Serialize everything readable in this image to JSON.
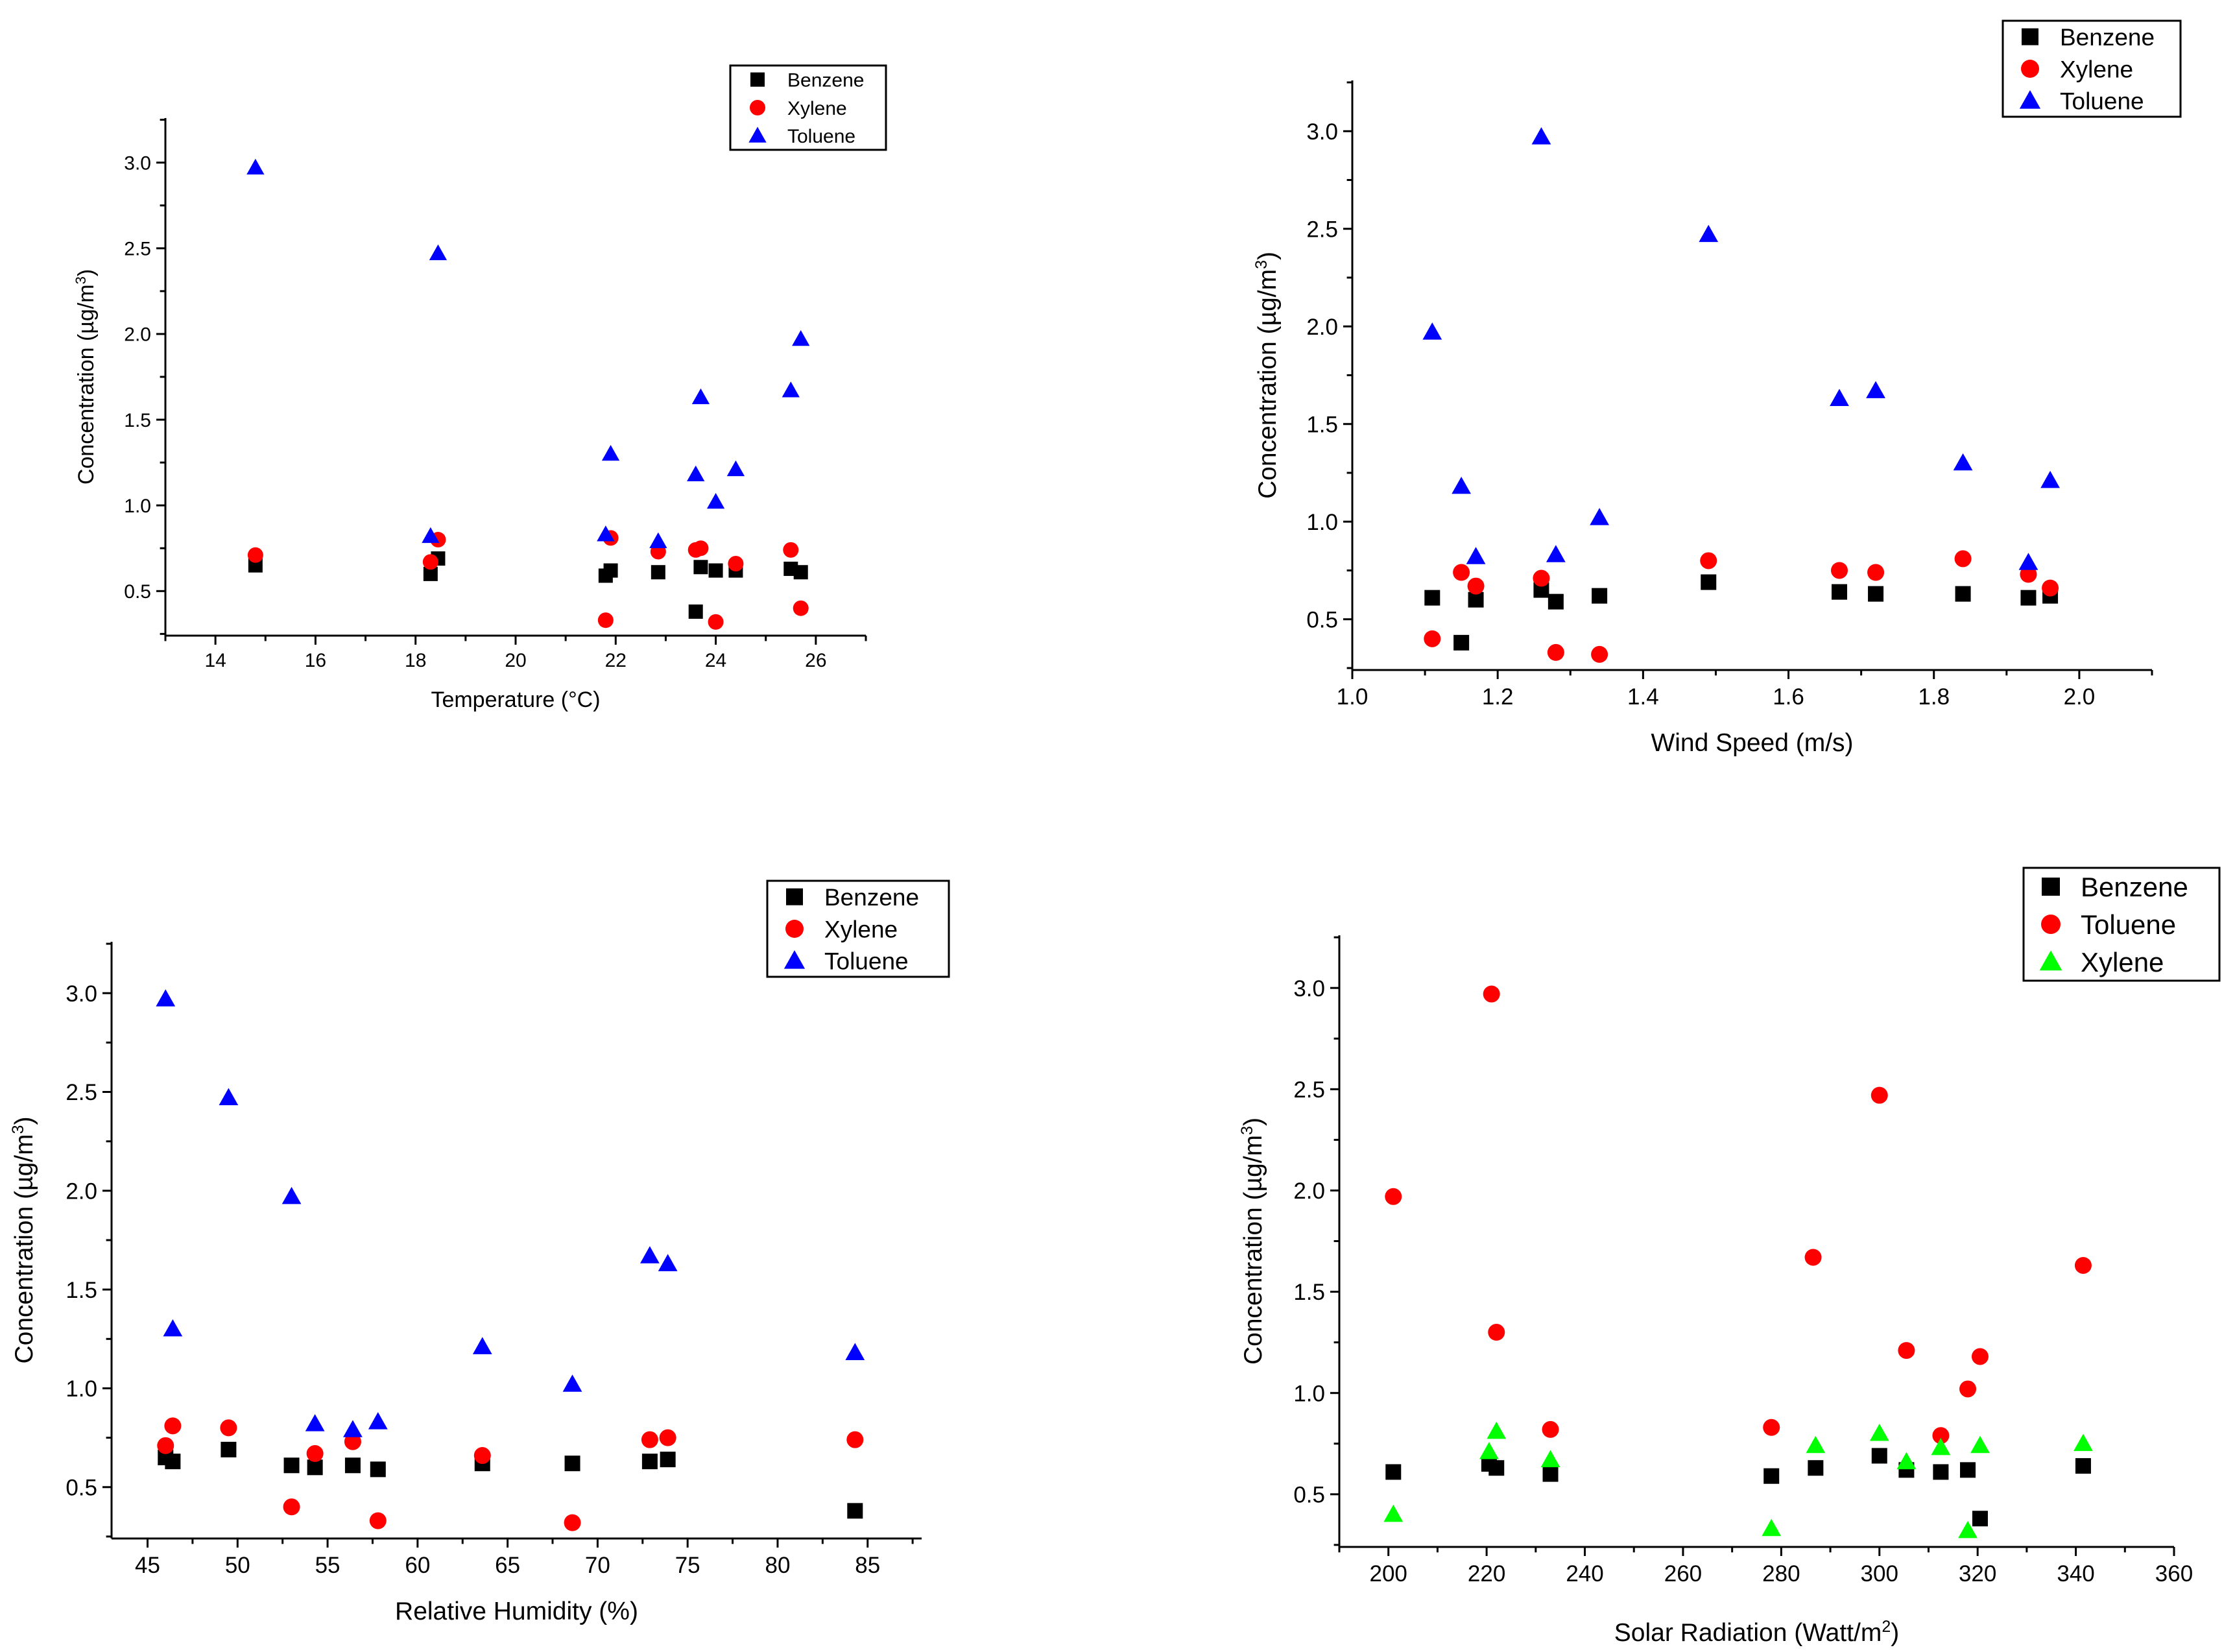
{
  "chart_data": [
    {
      "type": "scatter",
      "xlabel": "Temperature (°C)",
      "ylabel": "Concentration (µg/m",
      "ylabel_sup": "3",
      "ylabel_tail": ")",
      "xlim": [
        13,
        27
      ],
      "ylim": [
        0.24,
        3.26
      ],
      "xticks": [
        "14",
        "16",
        "18",
        "20",
        "22",
        "24",
        "26"
      ],
      "yticks": [
        "0.5",
        "1.0",
        "1.5",
        "2.0",
        "2.5",
        "3.0"
      ],
      "legend_position": "top-right",
      "series": [
        {
          "name": "Benzene",
          "marker": "square",
          "color": "#000000",
          "points": [
            [
              14.8,
              0.65
            ],
            [
              18.3,
              0.6
            ],
            [
              18.45,
              0.69
            ],
            [
              21.8,
              0.59
            ],
            [
              21.9,
              0.62
            ],
            [
              22.85,
              0.61
            ],
            [
              23.6,
              0.38
            ],
            [
              23.7,
              0.64
            ],
            [
              24.0,
              0.62
            ],
            [
              24.4,
              0.62
            ],
            [
              25.5,
              0.63
            ],
            [
              25.7,
              0.61
            ]
          ]
        },
        {
          "name": "Xylene",
          "marker": "circle",
          "color": "#ff0000",
          "points": [
            [
              14.8,
              0.71
            ],
            [
              18.3,
              0.67
            ],
            [
              18.45,
              0.8
            ],
            [
              21.8,
              0.33
            ],
            [
              21.9,
              0.81
            ],
            [
              22.85,
              0.73
            ],
            [
              23.6,
              0.74
            ],
            [
              23.7,
              0.75
            ],
            [
              24.0,
              0.32
            ],
            [
              24.4,
              0.66
            ],
            [
              25.5,
              0.74
            ],
            [
              25.7,
              0.4
            ]
          ]
        },
        {
          "name": "Toluene",
          "marker": "triangle",
          "color": "#0000ff",
          "points": [
            [
              14.8,
              2.97
            ],
            [
              18.3,
              0.82
            ],
            [
              18.45,
              2.47
            ],
            [
              21.8,
              0.83
            ],
            [
              21.9,
              1.3
            ],
            [
              22.85,
              0.79
            ],
            [
              23.6,
              1.18
            ],
            [
              23.7,
              1.63
            ],
            [
              24.0,
              1.02
            ],
            [
              24.4,
              1.21
            ],
            [
              25.5,
              1.67
            ],
            [
              25.7,
              1.97
            ]
          ]
        }
      ]
    },
    {
      "type": "scatter",
      "xlabel": "Wind Speed (m/s)",
      "ylabel": "Concentration (µg/m",
      "ylabel_sup": "3",
      "ylabel_tail": ")",
      "xlim": [
        1.0,
        2.1
      ],
      "ylim": [
        0.24,
        3.26
      ],
      "xticks": [
        "1.0",
        "1.2",
        "1.4",
        "1.6",
        "1.8",
        "2.0"
      ],
      "yticks": [
        "0.5",
        "1.0",
        "1.5",
        "2.0",
        "2.5",
        "3.0"
      ],
      "legend_position": "top-right",
      "series": [
        {
          "name": "Benzene",
          "marker": "square",
          "color": "#000000",
          "points": [
            [
              1.11,
              0.61
            ],
            [
              1.15,
              0.38
            ],
            [
              1.17,
              0.6
            ],
            [
              1.26,
              0.65
            ],
            [
              1.28,
              0.59
            ],
            [
              1.34,
              0.62
            ],
            [
              1.49,
              0.69
            ],
            [
              1.67,
              0.64
            ],
            [
              1.72,
              0.63
            ],
            [
              1.84,
              0.63
            ],
            [
              1.93,
              0.61
            ],
            [
              1.96,
              0.62
            ]
          ]
        },
        {
          "name": "Xylene",
          "marker": "circle",
          "color": "#ff0000",
          "points": [
            [
              1.11,
              0.4
            ],
            [
              1.15,
              0.74
            ],
            [
              1.17,
              0.67
            ],
            [
              1.26,
              0.71
            ],
            [
              1.28,
              0.33
            ],
            [
              1.34,
              0.32
            ],
            [
              1.49,
              0.8
            ],
            [
              1.67,
              0.75
            ],
            [
              1.72,
              0.74
            ],
            [
              1.84,
              0.81
            ],
            [
              1.93,
              0.73
            ],
            [
              1.96,
              0.66
            ]
          ]
        },
        {
          "name": "Toluene",
          "marker": "triangle",
          "color": "#0000ff",
          "points": [
            [
              1.11,
              1.97
            ],
            [
              1.15,
              1.18
            ],
            [
              1.17,
              0.82
            ],
            [
              1.26,
              2.97
            ],
            [
              1.28,
              0.83
            ],
            [
              1.34,
              1.02
            ],
            [
              1.49,
              2.47
            ],
            [
              1.67,
              1.63
            ],
            [
              1.72,
              1.67
            ],
            [
              1.84,
              1.3
            ],
            [
              1.93,
              0.79
            ],
            [
              1.96,
              1.21
            ]
          ]
        }
      ]
    },
    {
      "type": "scatter",
      "xlabel": "Relative Humidity (%)",
      "ylabel": "Concentration (µg/m",
      "ylabel_sup": "3",
      "ylabel_tail": ")",
      "xlim": [
        43,
        88
      ],
      "ylim": [
        0.24,
        3.26
      ],
      "xticks": [
        "45",
        "50",
        "55",
        "60",
        "65",
        "70",
        "75",
        "80",
        "85"
      ],
      "yticks": [
        "0.5",
        "1.0",
        "1.5",
        "2.0",
        "2.5",
        "3.0"
      ],
      "legend_position": "top-right",
      "series": [
        {
          "name": "Benzene",
          "marker": "square",
          "color": "#000000",
          "points": [
            [
              46.0,
              0.65
            ],
            [
              46.4,
              0.63
            ],
            [
              49.5,
              0.69
            ],
            [
              53.0,
              0.61
            ],
            [
              54.3,
              0.6
            ],
            [
              56.4,
              0.61
            ],
            [
              57.8,
              0.59
            ],
            [
              63.6,
              0.62
            ],
            [
              68.6,
              0.62
            ],
            [
              72.9,
              0.63
            ],
            [
              73.9,
              0.64
            ],
            [
              84.3,
              0.38
            ]
          ]
        },
        {
          "name": "Xylene",
          "marker": "circle",
          "color": "#ff0000",
          "points": [
            [
              46.0,
              0.71
            ],
            [
              46.4,
              0.81
            ],
            [
              49.5,
              0.8
            ],
            [
              53.0,
              0.4
            ],
            [
              54.3,
              0.67
            ],
            [
              56.4,
              0.73
            ],
            [
              57.8,
              0.33
            ],
            [
              63.6,
              0.66
            ],
            [
              68.6,
              0.32
            ],
            [
              72.9,
              0.74
            ],
            [
              73.9,
              0.75
            ],
            [
              84.3,
              0.74
            ]
          ]
        },
        {
          "name": "Toluene",
          "marker": "triangle",
          "color": "#0000ff",
          "points": [
            [
              46.0,
              2.97
            ],
            [
              46.4,
              1.3
            ],
            [
              49.5,
              2.47
            ],
            [
              53.0,
              1.97
            ],
            [
              54.3,
              0.82
            ],
            [
              56.4,
              0.79
            ],
            [
              57.8,
              0.83
            ],
            [
              63.6,
              1.21
            ],
            [
              68.6,
              1.02
            ],
            [
              72.9,
              1.67
            ],
            [
              73.9,
              1.63
            ],
            [
              84.3,
              1.18
            ]
          ]
        }
      ]
    },
    {
      "type": "scatter",
      "xlabel": "Solar Radiation (Watt/m",
      "xlabel_sup": "2",
      "xlabel_tail": ")",
      "ylabel": "Concentration (µg/m",
      "ylabel_sup": "3",
      "ylabel_tail": ")",
      "xlim": [
        190,
        360
      ],
      "ylim": [
        0.24,
        3.26
      ],
      "xticks": [
        "200",
        "220",
        "240",
        "260",
        "280",
        "300",
        "320",
        "340",
        "360"
      ],
      "yticks": [
        "0.5",
        "1.0",
        "1.5",
        "2.0",
        "2.5",
        "3.0"
      ],
      "legend_position": "top-right",
      "series": [
        {
          "name": "Benzene",
          "marker": "square",
          "color": "#000000",
          "points": [
            [
              201,
              0.61
            ],
            [
              220.5,
              0.65
            ],
            [
              222,
              0.63
            ],
            [
              233,
              0.6
            ],
            [
              278,
              0.59
            ],
            [
              287,
              0.63
            ],
            [
              300,
              0.69
            ],
            [
              305.5,
              0.62
            ],
            [
              312.5,
              0.61
            ],
            [
              318,
              0.62
            ],
            [
              320.5,
              0.38
            ],
            [
              341.5,
              0.64
            ]
          ]
        },
        {
          "name": "Toluene",
          "marker": "circle",
          "color": "#ff0000",
          "points": [
            [
              201,
              1.97
            ],
            [
              221,
              2.97
            ],
            [
              222,
              1.3
            ],
            [
              233,
              0.82
            ],
            [
              278,
              0.83
            ],
            [
              286.5,
              1.67
            ],
            [
              300,
              2.47
            ],
            [
              305.5,
              1.21
            ],
            [
              312.5,
              0.79
            ],
            [
              318,
              1.02
            ],
            [
              320.5,
              1.18
            ],
            [
              341.5,
              1.63
            ]
          ]
        },
        {
          "name": "Xylene",
          "marker": "triangle",
          "color": "#00ff00",
          "points": [
            [
              201,
              0.4
            ],
            [
              220.5,
              0.71
            ],
            [
              222,
              0.81
            ],
            [
              233,
              0.67
            ],
            [
              278,
              0.33
            ],
            [
              287,
              0.74
            ],
            [
              300,
              0.8
            ],
            [
              305.5,
              0.66
            ],
            [
              312.5,
              0.73
            ],
            [
              318,
              0.32
            ],
            [
              320.5,
              0.74
            ],
            [
              341.5,
              0.75
            ]
          ]
        }
      ]
    }
  ]
}
